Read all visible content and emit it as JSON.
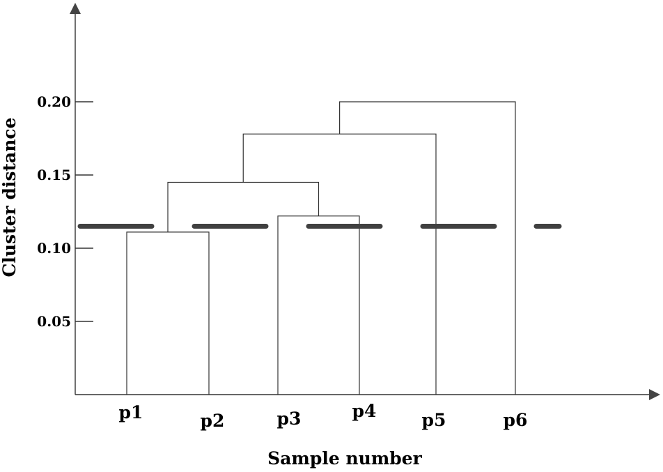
{
  "chart_data": {
    "type": "dendrogram",
    "xlabel": "Sample number",
    "ylabel": "Cluster distance",
    "yticks": [
      "0.05",
      "0.10",
      "0.15",
      "0.20"
    ],
    "ytick_values": [
      0.05,
      0.1,
      0.15,
      0.2
    ],
    "ylim": [
      0,
      0.25
    ],
    "leaves": [
      "p1",
      "p2",
      "p3",
      "p4",
      "p5",
      "p6"
    ],
    "merges": [
      {
        "left": "p1",
        "right": "p2",
        "height": 0.111
      },
      {
        "left": "p3",
        "right": "p4",
        "height": 0.122
      },
      {
        "left": "p1-p2",
        "right": "p3-p4",
        "height": 0.145
      },
      {
        "left": "p1-p2-p3-p4",
        "right": "p5",
        "height": 0.178
      },
      {
        "left": "p1-p2-p3-p4-p5",
        "right": "p6",
        "height": 0.2
      }
    ],
    "threshold": 0.115,
    "threshold_style": "dashed",
    "threshold_color": "#404040",
    "line_color": "#333333",
    "axis_color": "#333333"
  }
}
